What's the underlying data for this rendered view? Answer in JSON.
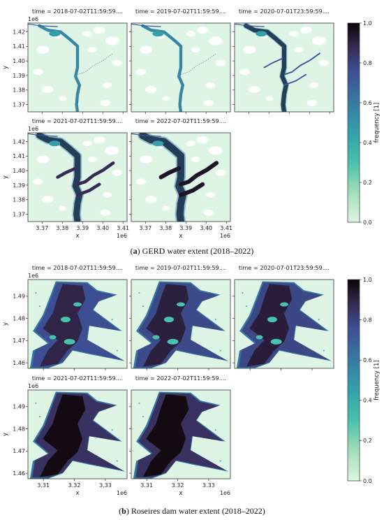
{
  "figure": {
    "captions": [
      {
        "letter": "a",
        "text": " GERD water extent (2018–2022)"
      },
      {
        "letter": "b",
        "text": " Roseires dam water extent (2018–2022)"
      }
    ]
  },
  "chart_data": [
    {
      "type": "heatmap",
      "title": "",
      "panel_titles": [
        "time = 2018-07-02T11:59:59....",
        "time = 2019-07-02T11:59:59....",
        "time = 2020-07-01T23:59:59....",
        "time = 2021-07-02T11:59:59....",
        "time = 2022-07-02T11:59:59...."
      ],
      "xlabel": "x",
      "ylabel": "y",
      "x_offset_label": "1e6",
      "y_offset_label": "1e6",
      "x_ticks": [
        3.37,
        3.38,
        3.39,
        3.4,
        3.41
      ],
      "x_tick_labels": [
        "3.37",
        "3.38",
        "3.39",
        "3.40",
        "3.41"
      ],
      "y_ticks": [
        1.37,
        1.38,
        1.39,
        1.4,
        1.41,
        1.42
      ],
      "y_tick_labels": [
        "1.37",
        "1.38",
        "1.39",
        "1.40",
        "1.41",
        "1.42"
      ],
      "xlim": [
        3.363,
        3.412
      ],
      "ylim": [
        1.365,
        1.426
      ],
      "colorbar": {
        "label": "frequency [1]",
        "min": 0.0,
        "max": 1.0,
        "ticks": [
          "0.0",
          "0.2",
          "0.4",
          "0.6",
          "0.8",
          "1.0"
        ],
        "colormap": "mako_r"
      },
      "shape": [
        [
          0.115,
          0.97
        ],
        [
          0.2,
          0.92
        ],
        [
          0.33,
          0.9
        ],
        [
          0.42,
          0.82
        ],
        [
          0.5,
          0.74
        ],
        [
          0.5,
          0.62
        ],
        [
          0.5,
          0.5
        ],
        [
          0.48,
          0.4
        ],
        [
          0.52,
          0.3
        ],
        [
          0.5,
          0.2
        ],
        [
          0.49,
          0.08
        ],
        [
          0.5,
          0.0
        ]
      ],
      "branches": [
        [
          [
            0.5,
            0.42
          ],
          [
            0.58,
            0.45
          ],
          [
            0.66,
            0.52
          ],
          [
            0.76,
            0.58
          ],
          [
            0.86,
            0.66
          ]
        ],
        [
          [
            0.48,
            0.6
          ],
          [
            0.38,
            0.55
          ],
          [
            0.3,
            0.5
          ]
        ],
        [
          [
            0.5,
            0.3
          ],
          [
            0.62,
            0.35
          ],
          [
            0.72,
            0.42
          ]
        ]
      ],
      "extent_by_year": [
        0.35,
        0.35,
        0.55,
        0.85,
        1.0
      ]
    },
    {
      "type": "heatmap",
      "title": "",
      "panel_titles": [
        "time = 2018-07-02T11:59:59....",
        "time = 2019-07-02T11:59:59....",
        "time = 2020-07-01T23:59:59....",
        "time = 2021-07-02T11:59:59....",
        "time = 2022-07-02T11:59:59...."
      ],
      "xlabel": "x",
      "ylabel": "y",
      "x_offset_label": "1e6",
      "y_offset_label": "1e6",
      "x_ticks": [
        3.31,
        3.32,
        3.33
      ],
      "x_tick_labels": [
        "3.31",
        "3.32",
        "3.33"
      ],
      "y_ticks": [
        1.46,
        1.47,
        1.48,
        1.49
      ],
      "y_tick_labels": [
        "1.46",
        "1.47",
        "1.48",
        "1.49"
      ],
      "xlim": [
        3.305,
        3.337
      ],
      "ylim": [
        1.4575,
        1.4975
      ],
      "colorbar": {
        "label": "frequency [1]",
        "min": 0.0,
        "max": 1.0,
        "ticks": [
          "0.0",
          "0.2",
          "0.4",
          "0.6",
          "0.8",
          "1.0"
        ],
        "colormap": "mako_r"
      },
      "extent_by_year": [
        0.75,
        0.78,
        0.8,
        0.95,
        0.95
      ]
    }
  ]
}
